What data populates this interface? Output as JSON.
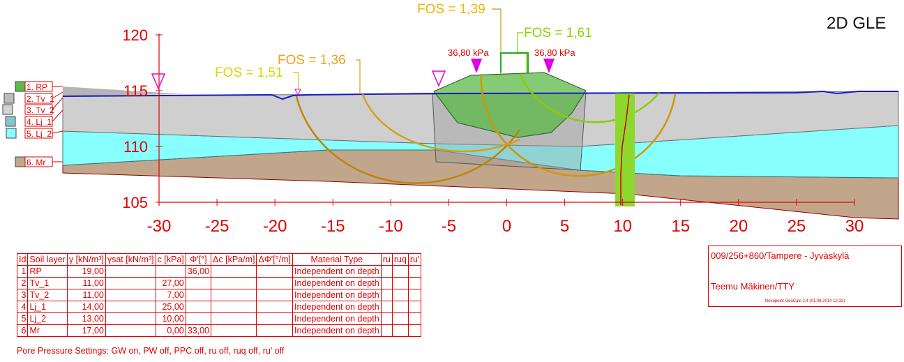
{
  "method_label": "2D GLE",
  "chart_data": {
    "type": "diagram",
    "x_ticks": [
      -30,
      -25,
      -20,
      -15,
      -10,
      -5,
      0,
      5,
      10,
      15,
      20,
      25,
      30
    ],
    "y_ticks": [
      105,
      110,
      115,
      120
    ],
    "xlim": [
      -30,
      30
    ],
    "ylim": [
      105,
      120
    ],
    "layers": [
      {
        "id": 1,
        "label": "1. RP",
        "color": "#5cba47"
      },
      {
        "id": 2,
        "label": "2. Tv_1",
        "color": "#bcbcbc"
      },
      {
        "id": 3,
        "label": "3. Tv_2",
        "color": "#d3d3d3"
      },
      {
        "id": 4,
        "label": "4. Lj_1",
        "color": "#80c8c8"
      },
      {
        "id": 5,
        "label": "5. Lj_2",
        "color": "#88ffff"
      },
      {
        "id": 6,
        "label": "6. Mr",
        "color": "#c2a68c"
      }
    ],
    "loads": [
      "36,80 kPa",
      "36,80 kPa"
    ],
    "fos": [
      {
        "label": "FOS = 1,39",
        "color": "#cc9900"
      },
      {
        "label": "FOS = 1,61",
        "color": "#88cc00"
      },
      {
        "label": "FOS = 1,36",
        "color": "#d4a017"
      },
      {
        "label": "FOS = 1,51",
        "color": "#c8c800"
      }
    ]
  },
  "soil_table": {
    "headers": [
      "Id",
      "Soil layer",
      "γ [kN/m³]",
      "γsat [kN/m³]",
      "c [kPa]",
      "Φ'[°]",
      "Δc [kPa/m]",
      "ΔΦ'[°/m]",
      "Material Type",
      "ru",
      "ruq",
      "ru'"
    ],
    "rows": [
      [
        "1",
        "RP",
        "19,00",
        "",
        "",
        "36,00",
        "",
        "",
        "Independent on depth",
        "",
        "",
        ""
      ],
      [
        "2",
        "Tv_1",
        "11,00",
        "",
        "27,00",
        "",
        "",
        "",
        "Independent on depth",
        "",
        "",
        ""
      ],
      [
        "3",
        "Tv_2",
        "11,00",
        "",
        "7,00",
        "",
        "",
        "",
        "Independent on depth",
        "",
        "",
        ""
      ],
      [
        "4",
        "Lj_1",
        "14,00",
        "",
        "25,00",
        "",
        "",
        "",
        "Independent on depth",
        "",
        "",
        ""
      ],
      [
        "5",
        "Lj_2",
        "13,00",
        "",
        "10,00",
        "",
        "",
        "",
        "Independent on depth",
        "",
        "",
        ""
      ],
      [
        "6",
        "Mr",
        "17,00",
        "",
        "0,00",
        "33,00",
        "",
        "",
        "Independent on depth",
        "",
        "",
        ""
      ]
    ]
  },
  "pore_pressure": "Pore Pressure Settings: GW on, PW off, PPC off, ru off, ruq off, ru' off",
  "info_box": {
    "project": "009/256+860/Tampere - Jyväskylä",
    "author": "Teemu Mäkinen/TTY",
    "software": "Novapoint GeoCalc 2.4  (01.08.2014 12:32)"
  }
}
